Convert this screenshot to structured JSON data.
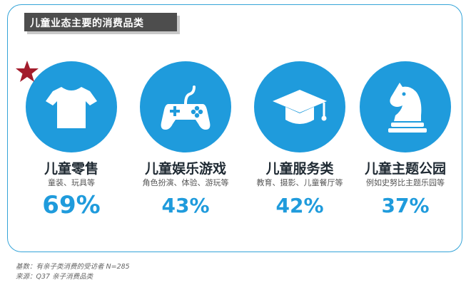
{
  "title": "儿童业态主要的消费品类",
  "categories": [
    {
      "name": "儿童零售",
      "sub": "童装、玩具等",
      "pct": "69%",
      "icon": "tshirt-icon"
    },
    {
      "name": "儿童娱乐游戏",
      "sub": "角色扮演、体验、游玩等",
      "pct": "43%",
      "icon": "gamepad-icon"
    },
    {
      "name": "儿童服务类",
      "sub": "教育、摄影、儿童餐厅等",
      "pct": "42%",
      "icon": "graduation-cap-icon"
    },
    {
      "name": "儿童主题公园",
      "sub": "例如史努比主题乐园等",
      "pct": "37%",
      "icon": "chess-knight-icon"
    }
  ],
  "footnotes": {
    "base": "基数：有亲子类消费的受访者 N=285",
    "source": "来源：Q37 亲子消费品类"
  },
  "colors": {
    "accent": "#1f9bdc",
    "title_bg": "#4d4d4d",
    "star": "#a31c2c",
    "border": "#35a4d8"
  }
}
